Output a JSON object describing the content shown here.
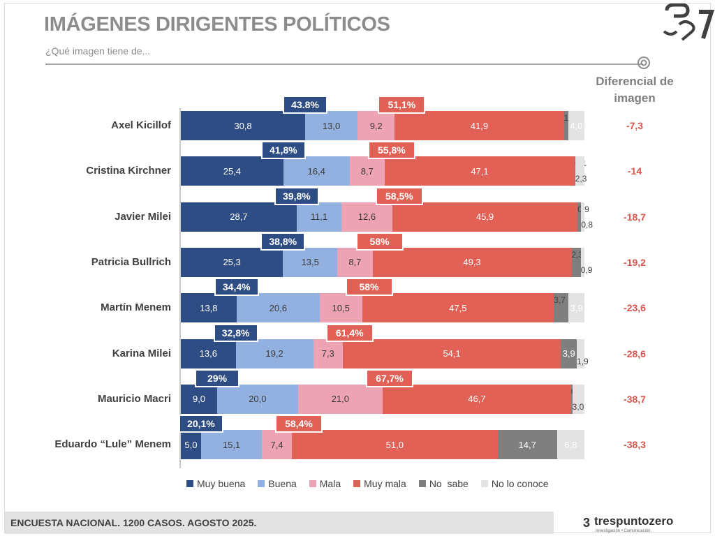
{
  "header": {
    "title": "IMÁGENES DIRIGENTES POLÍTICOS",
    "subtitle": "¿Qué imagen tiene de...",
    "diff_header": "Diferencial de imagen"
  },
  "footer": {
    "text": "ENCUESTA NACIONAL. 1200 CASOS. AGOSTO 2025.",
    "brand_name": "trespuntozero",
    "brand_mark": "3",
    "brand_sub": "Investigación • Comunicación"
  },
  "colors": {
    "muy_buena": "#2f4d85",
    "buena": "#93b1e0",
    "mala": "#eda3b4",
    "muy_mala": "#e26156",
    "no_sabe": "#7f7f7f",
    "no_conoce": "#e3e3e3"
  },
  "chart_data": {
    "type": "bar",
    "orientation": "horizontal-stacked",
    "title": "IMÁGENES DIRIGENTES POLÍTICOS",
    "subtitle": "¿Qué imagen tiene de...",
    "series_names": [
      "Muy buena",
      "Buena",
      "Mala",
      "Muy mala",
      "No  sabe",
      "No lo conoce"
    ],
    "legend": "bottom",
    "categories": [
      "Axel Kicillof",
      "Cristina Kirchner",
      "Javier Milei",
      "Patricia Bullrich",
      "Martín Menem",
      "Karina Milei",
      "Mauricio Macri",
      "Eduardo “Lule” Menem"
    ],
    "rows": [
      {
        "values": [
          30.8,
          13.0,
          9.2,
          41.9,
          1.1,
          4.0
        ],
        "labels": [
          "30,8",
          "13,0",
          "9,2",
          "41,9",
          "1,1",
          "4,0"
        ],
        "positive_total": "43.8%",
        "negative_total": "51,1%",
        "differential": "-7,3"
      },
      {
        "values": [
          25.4,
          16.4,
          8.7,
          47.1,
          0.1,
          2.3
        ],
        "labels": [
          "25,4",
          "16,4",
          "8,7",
          "47,1",
          "0,1",
          "2,3"
        ],
        "positive_total": "41,8%",
        "negative_total": "55,8%",
        "differential": "-14"
      },
      {
        "values": [
          28.7,
          11.1,
          12.6,
          45.9,
          0.9,
          0.8
        ],
        "labels": [
          "28,7",
          "11,1",
          "12,6",
          "45,9",
          "0,9",
          "0,8"
        ],
        "positive_total": "39,8%",
        "negative_total": "58,5%",
        "differential": "-18,7"
      },
      {
        "values": [
          25.3,
          13.5,
          8.7,
          49.3,
          2.3,
          0.9
        ],
        "labels": [
          "25,3",
          "13,5",
          "8,7",
          "49,3",
          "2,3",
          "0,9"
        ],
        "positive_total": "38,8%",
        "negative_total": "58%",
        "differential": "-19,2"
      },
      {
        "values": [
          13.8,
          20.6,
          10.5,
          47.5,
          3.7,
          3.9
        ],
        "labels": [
          "13,8",
          "20,6",
          "10,5",
          "47,5",
          "3,7",
          "3,9"
        ],
        "positive_total": "34,4%",
        "negative_total": "58%",
        "differential": "-23,6"
      },
      {
        "values": [
          13.6,
          19.2,
          7.3,
          54.1,
          3.9,
          1.9
        ],
        "labels": [
          "13,6",
          "19,2",
          "7,3",
          "54,1",
          "3,9",
          "1,9"
        ],
        "positive_total": "32,8%",
        "negative_total": "61,4%",
        "differential": "-28,6"
      },
      {
        "values": [
          9.0,
          20.0,
          21.0,
          46.7,
          0.3,
          3.0
        ],
        "labels": [
          "9,0",
          "20,0",
          "21,0",
          "46,7",
          "0,3",
          "3,0"
        ],
        "positive_total": "29%",
        "negative_total": "67,7%",
        "differential": "-38,7"
      },
      {
        "values": [
          5.0,
          15.1,
          7.4,
          51.0,
          14.7,
          6.8
        ],
        "labels": [
          "5,0",
          "15,1",
          "7,4",
          "51,0",
          "14,7",
          "6,8"
        ],
        "positive_total": "20,1%",
        "negative_total": "58,4%",
        "differential": "-38,3"
      }
    ],
    "xlim": [
      0,
      100
    ]
  }
}
